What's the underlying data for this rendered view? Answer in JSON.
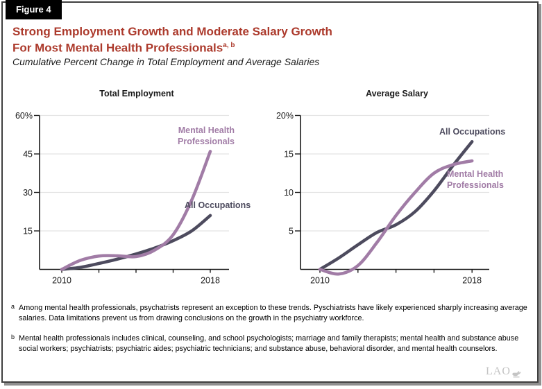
{
  "figure_label": "Figure 4",
  "title": {
    "line1": "Strong Employment Growth and Moderate Salary Growth",
    "line2": "For Most Mental Health Professionals",
    "superscript": "a, b"
  },
  "subtitle": "Cumulative Percent Change in Total Employment and Average Salaries",
  "colors": {
    "title_red": "#AC3A2C",
    "mental_health": "#A17CA6",
    "all_occupations": "#4D4B5E",
    "gridline": "#E3E3E3",
    "axis": "#1A1A1A",
    "tick_label": "#1A1A1A",
    "figure_tab_bg": "#000000",
    "logo_gray": "#C4C4C4"
  },
  "chart_data": [
    {
      "type": "line",
      "title": "Total Employment",
      "xlabel": "",
      "ylabel": "Cumulative percent change",
      "x": [
        2010,
        2011,
        2012,
        2013,
        2014,
        2015,
        2016,
        2017,
        2018
      ],
      "ylim": [
        0,
        60
      ],
      "grid": true,
      "legend_position": "annotated-on-chart",
      "y_ticks": [
        {
          "value": 60,
          "label": "60%"
        },
        {
          "value": 45,
          "label": "45"
        },
        {
          "value": 30,
          "label": "30"
        },
        {
          "value": 15,
          "label": "15"
        }
      ],
      "x_ticks": [
        {
          "value": 2010,
          "label": "2010"
        },
        {
          "value": 2012,
          "label": ""
        },
        {
          "value": 2014,
          "label": ""
        },
        {
          "value": 2016,
          "label": ""
        },
        {
          "value": 2018,
          "label": "2018"
        }
      ],
      "series": [
        {
          "name": "All Occupations",
          "color_key": "all_occupations",
          "values": [
            0,
            0.8,
            2.3,
            4,
            6,
            8.3,
            11.2,
            15,
            21
          ]
        },
        {
          "name": "Mental Health Professionals",
          "color_key": "mental_health",
          "values": [
            0,
            3.5,
            5.2,
            5.3,
            5.0,
            7.5,
            13.5,
            27,
            46
          ]
        }
      ]
    },
    {
      "type": "line",
      "title": "Average Salary",
      "xlabel": "",
      "ylabel": "Cumulative percent change",
      "x": [
        2010,
        2011,
        2012,
        2013,
        2014,
        2015,
        2016,
        2017,
        2018
      ],
      "ylim": [
        -1,
        20
      ],
      "grid": true,
      "legend_position": "annotated-on-chart",
      "y_ticks": [
        {
          "value": 20,
          "label": "20%"
        },
        {
          "value": 15,
          "label": "15"
        },
        {
          "value": 10,
          "label": "10"
        },
        {
          "value": 5,
          "label": "5"
        }
      ],
      "x_ticks": [
        {
          "value": 2010,
          "label": "2010"
        },
        {
          "value": 2012,
          "label": ""
        },
        {
          "value": 2014,
          "label": ""
        },
        {
          "value": 2016,
          "label": ""
        },
        {
          "value": 2018,
          "label": "2018"
        }
      ],
      "series": [
        {
          "name": "All Occupations",
          "color_key": "all_occupations",
          "values": [
            0,
            1.5,
            3.2,
            4.8,
            5.8,
            7.5,
            10.2,
            13.5,
            16.6
          ]
        },
        {
          "name": "Mental Health Professionals",
          "color_key": "mental_health",
          "values": [
            0,
            -0.6,
            0.5,
            3.5,
            7,
            10,
            12.5,
            13.6,
            14.1
          ]
        }
      ]
    }
  ],
  "footnotes": [
    {
      "marker": "a",
      "text": "Among mental health professionals, psychatrists represent an exception to these trends. Pyschiatrists have likely experienced sharply increasing average salaries. Data limitations prevent us from drawing conclusions on the growth in the psychiatry workforce."
    },
    {
      "marker": "b",
      "text": "Mental health professionals includes clinical, counseling, and school psychologists; marriage and family therapists; mental health and substance abuse social workers; psychiatrists; psychiatric aides; psychiatric technicians; and substance abuse, behavioral disorder, and mental health counselors."
    }
  ],
  "logo_text": "LAO"
}
